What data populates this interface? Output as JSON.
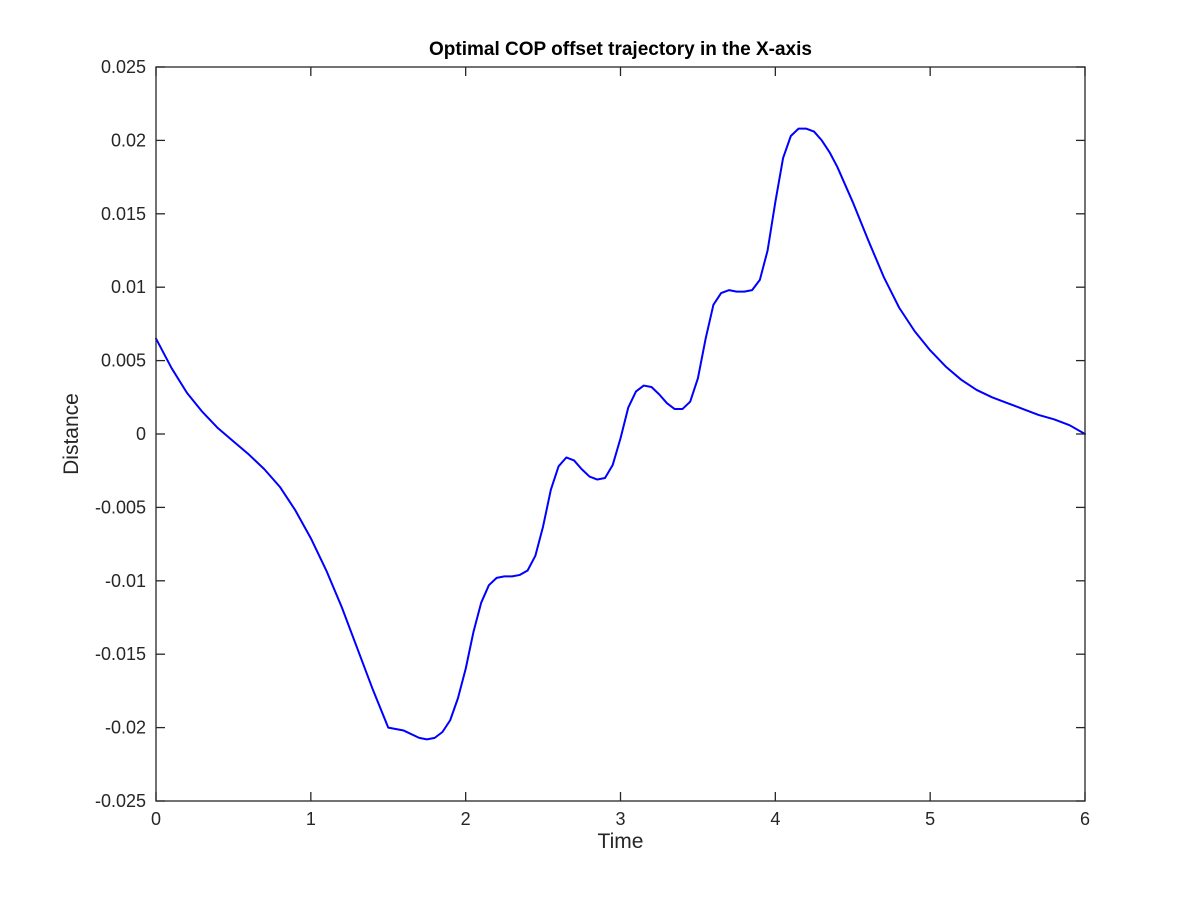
{
  "chart_data": {
    "type": "line",
    "title": "Optimal COP offset trajectory in the X-axis",
    "xlabel": "Time",
    "ylabel": "Distance",
    "xlim": [
      0,
      6
    ],
    "ylim": [
      -0.025,
      0.025
    ],
    "x_ticks": [
      0,
      1,
      2,
      3,
      4,
      5,
      6
    ],
    "x_tick_labels": [
      "0",
      "1",
      "2",
      "3",
      "4",
      "5",
      "6"
    ],
    "y_ticks": [
      -0.025,
      -0.02,
      -0.015,
      -0.01,
      -0.005,
      0,
      0.005,
      0.01,
      0.015,
      0.02,
      0.025
    ],
    "y_tick_labels": [
      "-0.025",
      "-0.02",
      "-0.015",
      "-0.01",
      "-0.005",
      "0",
      "0.005",
      "0.01",
      "0.015",
      "0.02",
      "0.025"
    ],
    "grid": false,
    "line_color": "#0000ff",
    "axis_color": "#262626",
    "series": [
      {
        "x": [
          0,
          0.1,
          0.2,
          0.3,
          0.4,
          0.5,
          0.6,
          0.7,
          0.8,
          0.9,
          1.0,
          1.1,
          1.2,
          1.3,
          1.4,
          1.5,
          1.6,
          1.7,
          1.75,
          1.8,
          1.85,
          1.9,
          1.95,
          2.0,
          2.05,
          2.1,
          2.15,
          2.2,
          2.25,
          2.3,
          2.35,
          2.4,
          2.45,
          2.5,
          2.55,
          2.6,
          2.65,
          2.7,
          2.75,
          2.8,
          2.85,
          2.9,
          2.95,
          3.0,
          3.05,
          3.1,
          3.15,
          3.2,
          3.25,
          3.3,
          3.35,
          3.4,
          3.45,
          3.5,
          3.55,
          3.6,
          3.65,
          3.7,
          3.75,
          3.8,
          3.85,
          3.9,
          3.95,
          4.0,
          4.05,
          4.1,
          4.15,
          4.2,
          4.25,
          4.3,
          4.35,
          4.4,
          4.5,
          4.6,
          4.7,
          4.8,
          4.9,
          5.0,
          5.1,
          5.2,
          5.3,
          5.4,
          5.5,
          5.6,
          5.7,
          5.8,
          5.9,
          6.0
        ],
        "y": [
          0.0065,
          0.0045,
          0.0028,
          0.0015,
          0.0004,
          -0.0005,
          -0.0014,
          -0.0024,
          -0.0036,
          -0.0052,
          -0.0071,
          -0.0093,
          -0.0118,
          -0.0146,
          -0.0174,
          -0.02,
          -0.0202,
          -0.0207,
          -0.0208,
          -0.0207,
          -0.0203,
          -0.0195,
          -0.018,
          -0.016,
          -0.0135,
          -0.0115,
          -0.0103,
          -0.0098,
          -0.0097,
          -0.0097,
          -0.0096,
          -0.0093,
          -0.0083,
          -0.0063,
          -0.0038,
          -0.0022,
          -0.0016,
          -0.0018,
          -0.0024,
          -0.0029,
          -0.0031,
          -0.003,
          -0.0021,
          -0.0003,
          0.0018,
          0.0029,
          0.0033,
          0.0032,
          0.0027,
          0.0021,
          0.0017,
          0.0017,
          0.0022,
          0.0038,
          0.0065,
          0.0088,
          0.0096,
          0.0098,
          0.0097,
          0.0097,
          0.0098,
          0.0105,
          0.0125,
          0.0158,
          0.0188,
          0.0203,
          0.0208,
          0.0208,
          0.0206,
          0.02,
          0.0192,
          0.0182,
          0.0158,
          0.0132,
          0.0107,
          0.0086,
          0.007,
          0.0057,
          0.0046,
          0.0037,
          0.003,
          0.0025,
          0.0021,
          0.0017,
          0.0013,
          0.001,
          0.0006,
          0.0
        ]
      }
    ]
  }
}
